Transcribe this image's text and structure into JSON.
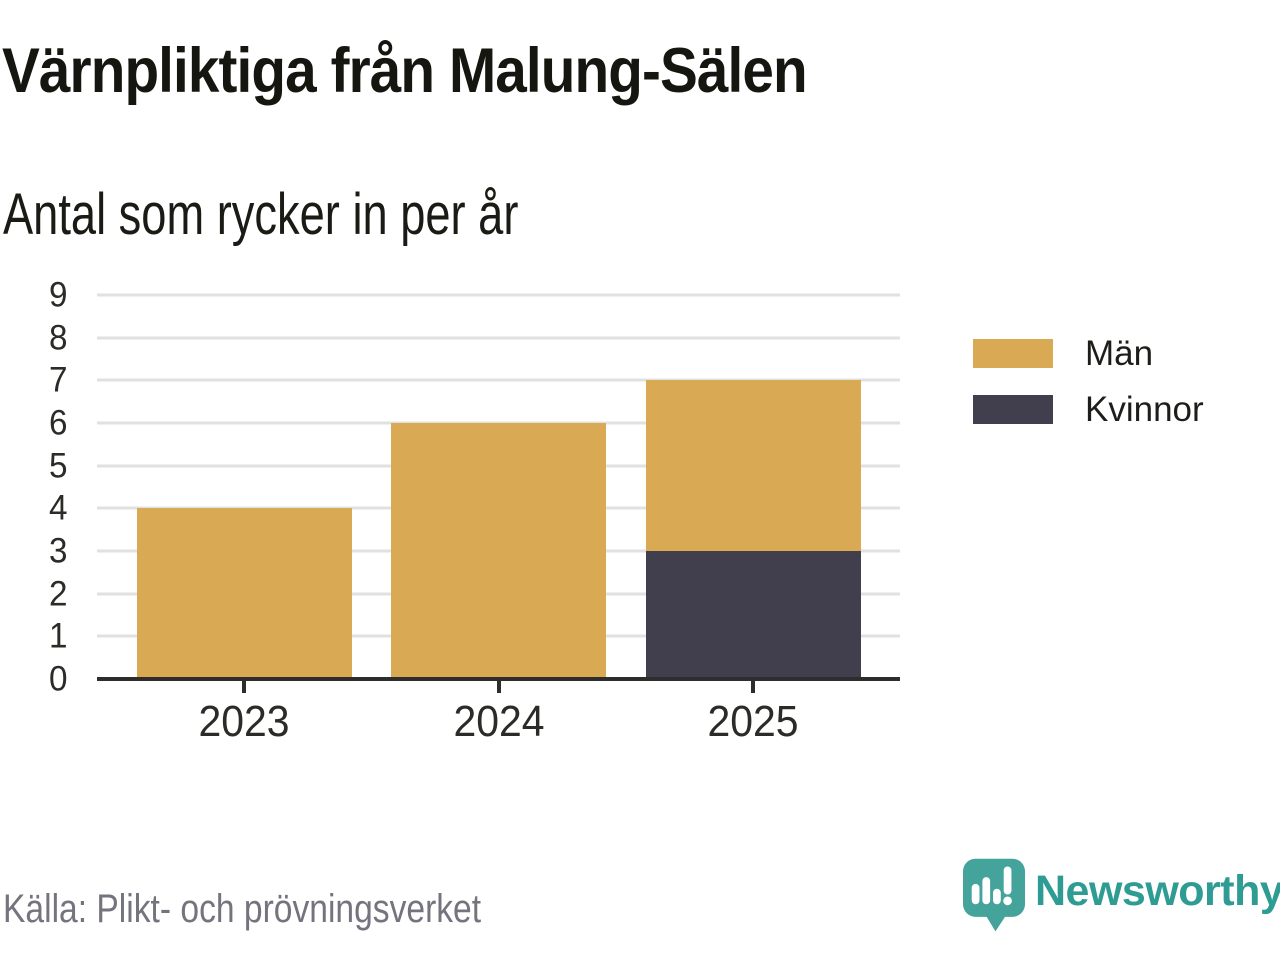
{
  "chart_data": {
    "type": "bar",
    "stacked": true,
    "title": "Värnpliktiga från Malung-Sälen",
    "subtitle": "Antal som rycker in per år",
    "categories": [
      "2023",
      "2024",
      "2025"
    ],
    "series": [
      {
        "name": "Män",
        "color": "#d9a953",
        "values": [
          4,
          6,
          4
        ]
      },
      {
        "name": "Kvinnor",
        "color": "#413f4e",
        "values": [
          0,
          0,
          3
        ]
      }
    ],
    "totals": [
      4,
      6,
      7
    ],
    "ylim": [
      0,
      9
    ],
    "yticks": [
      0,
      1,
      2,
      3,
      4,
      5,
      6,
      7,
      8,
      9
    ],
    "grid": "horizontal-only",
    "legend_position": "right",
    "colors": {
      "grid": "#e1e1e1",
      "axis": "#2d2d2b",
      "tick_label": "#2b2b28"
    }
  },
  "footer": {
    "source": "Källa: Plikt- och prövningsverket"
  },
  "brand": {
    "name": "Newsworthy",
    "icon": "newsworthy-logo-icon",
    "icon_color": "#44a39a",
    "text_color": "#2f9c93"
  }
}
